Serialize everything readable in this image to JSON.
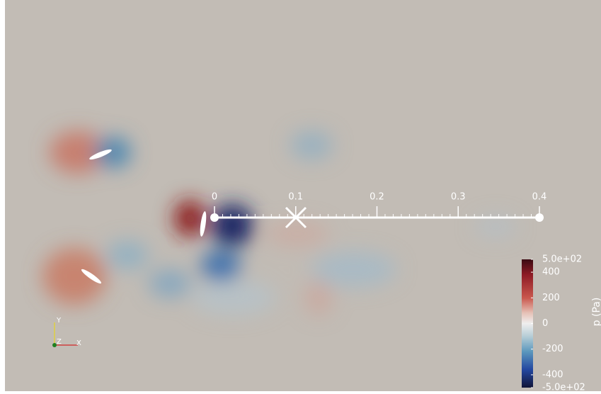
{
  "ruler": {
    "ticks": [
      0,
      0.1,
      0.2,
      0.3,
      0.4
    ]
  },
  "colorbar": {
    "title": "p (Pa)",
    "ticks": [
      {
        "value": 500,
        "label": "5.0e+02"
      },
      400,
      200,
      0,
      -200,
      -400,
      {
        "value": -500,
        "label": "-5.0e+02"
      }
    ]
  },
  "axes": {
    "y": "Y",
    "z": "Z",
    "x": "X"
  }
}
